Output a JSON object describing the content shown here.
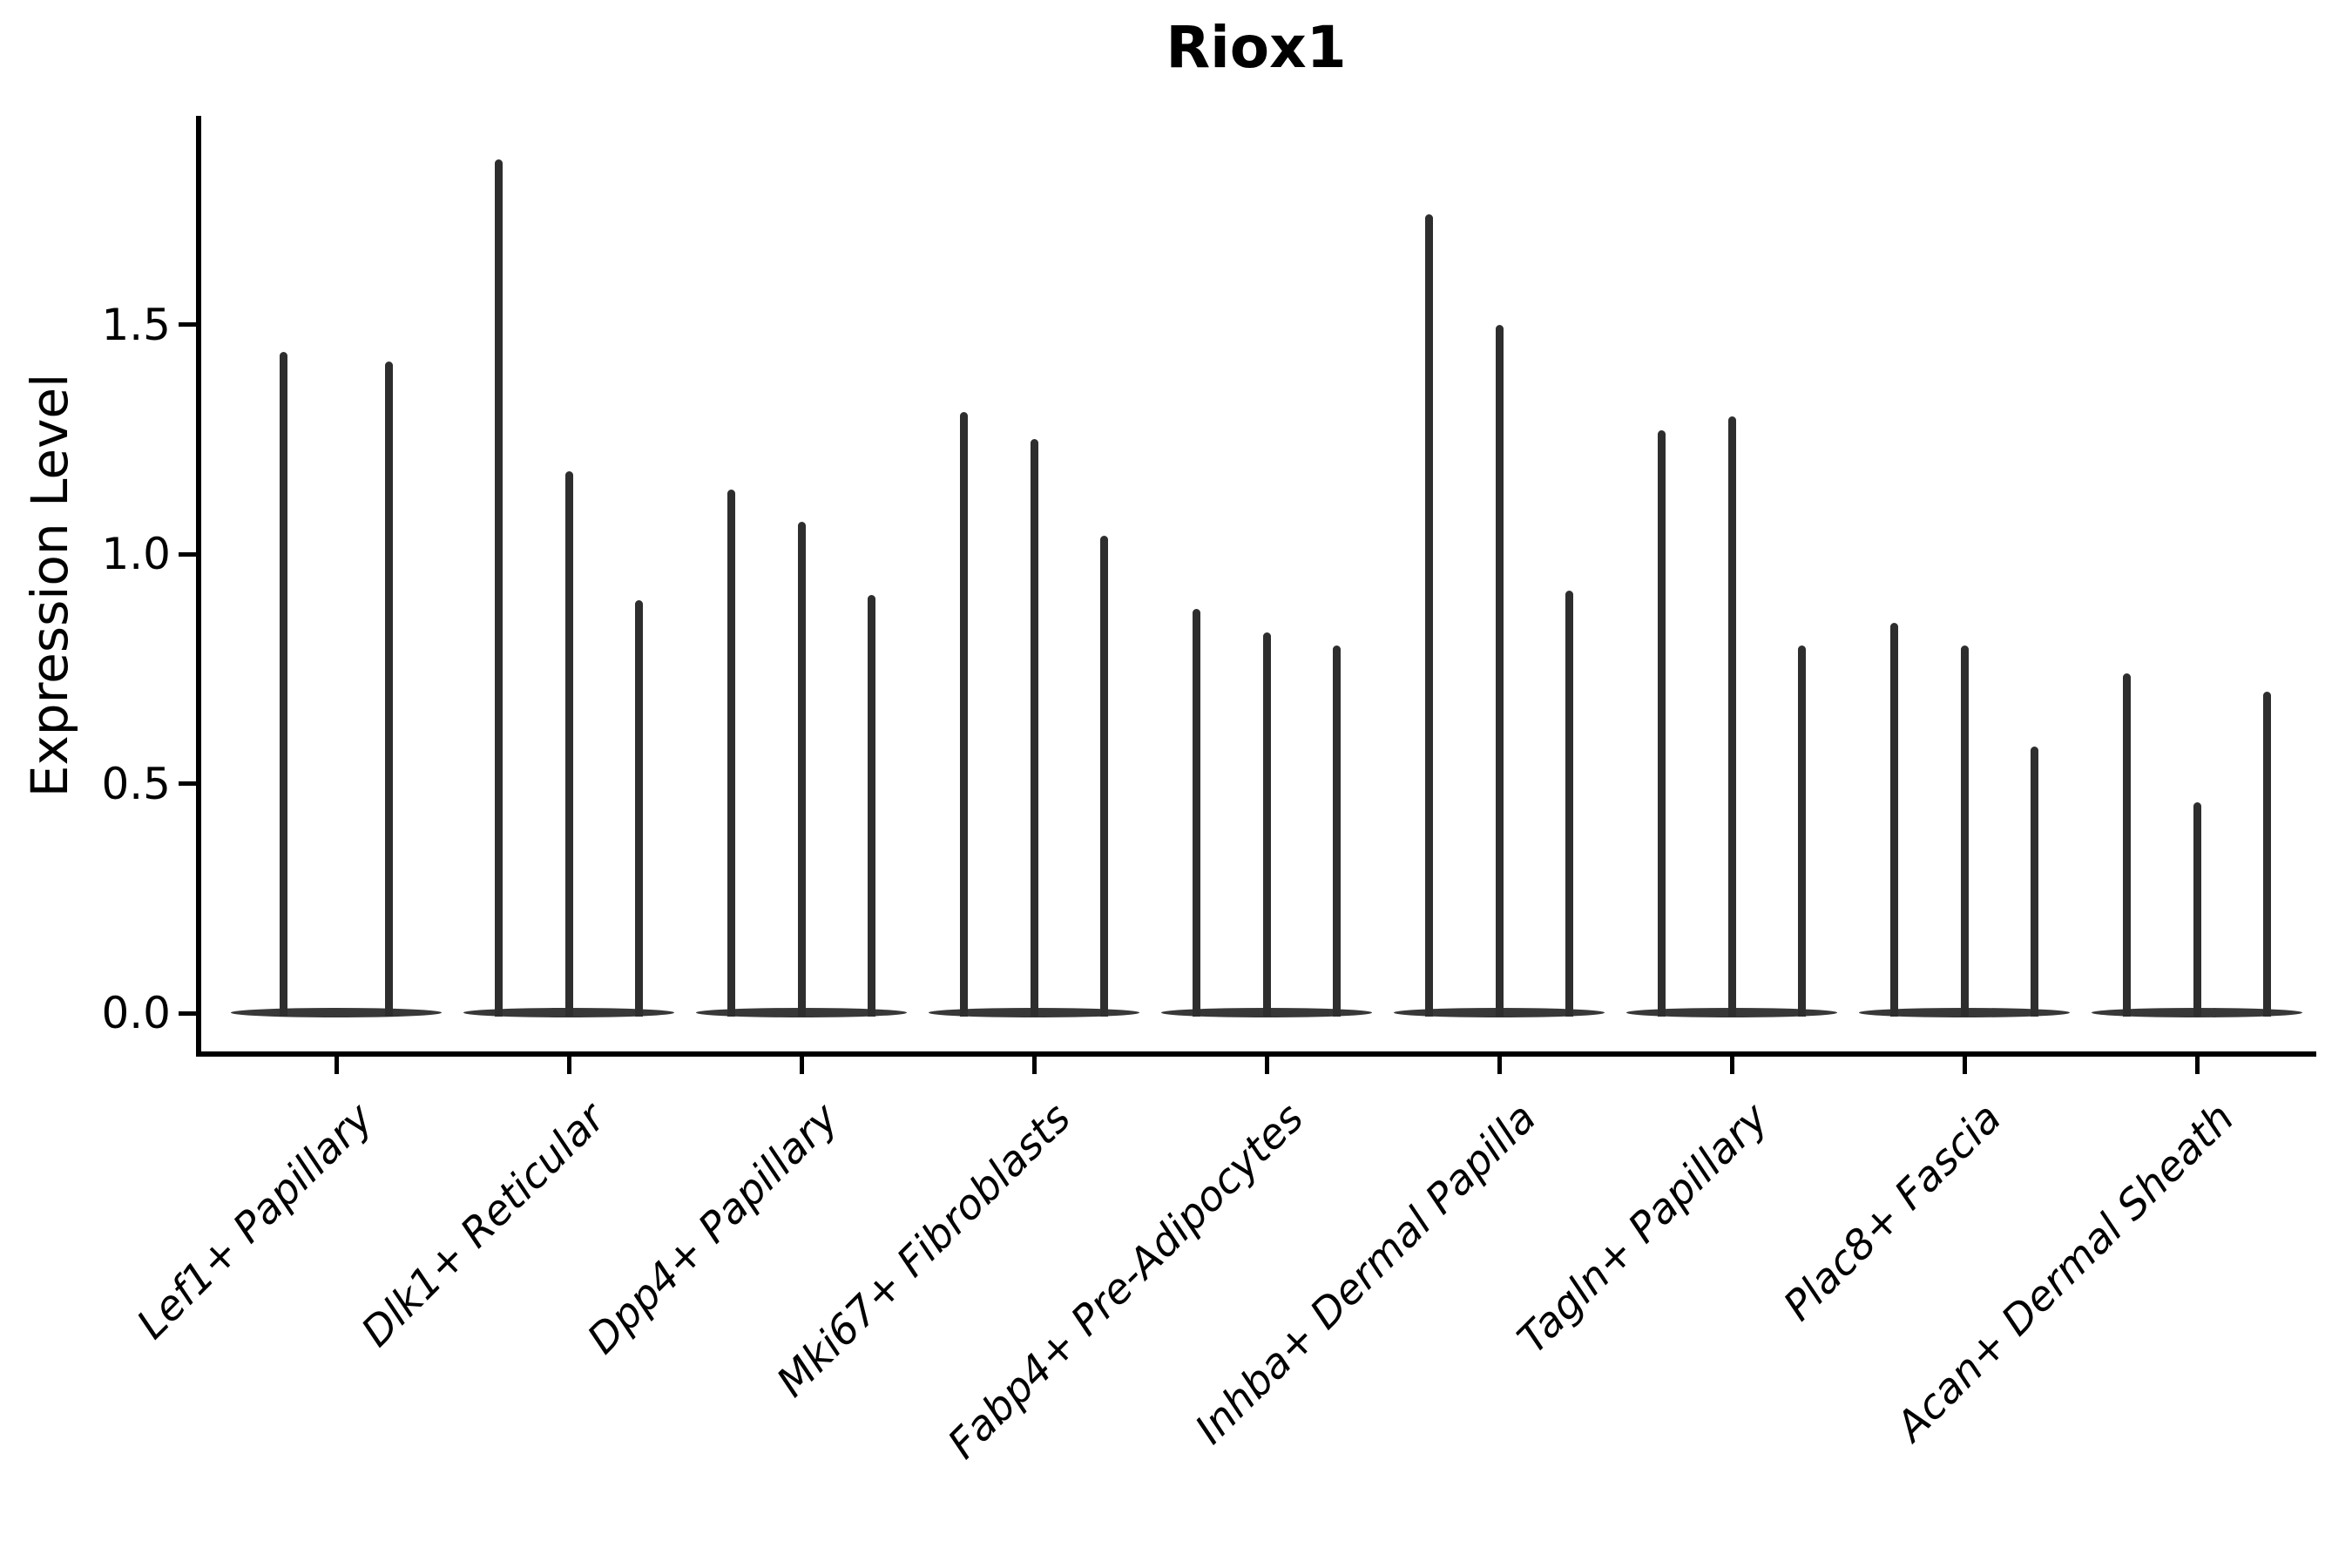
{
  "title": "Riox1",
  "y_axis": {
    "label": "Expression Level",
    "tick_labels": [
      "0.0",
      "0.5",
      "1.0",
      "1.5"
    ],
    "tick_values": [
      0.0,
      0.5,
      1.0,
      1.5
    ]
  },
  "chart_data": {
    "type": "violin",
    "title": "Riox1",
    "xlabel": "",
    "ylabel": "Expression Level",
    "ylim": [
      -0.09,
      1.96
    ],
    "grid": false,
    "legend": "none",
    "orientation": "vertical",
    "description": "Thin spike-shaped violins (dense mass at 0 with narrow tail up to max expression), grouped per cell type",
    "categories": [
      "Lef1+ Papillary",
      "Dlk1+ Reticular",
      "Dpp4+ Papillary",
      "Mki67+ Fibroblasts",
      "Fabp4+ Pre-Adipocytes",
      "Inhba+ Dermal Papilla",
      "Tagln+ Papillary",
      "Plac8+ Fascia",
      "Acan+ Dermal Sheath"
    ],
    "groups": [
      {
        "category": "Lef1+ Papillary",
        "violin_peak_values": [
          1.44,
          1.42
        ]
      },
      {
        "category": "Dlk1+ Reticular",
        "violin_peak_values": [
          1.86,
          1.18,
          0.9
        ]
      },
      {
        "category": "Dpp4+ Papillary",
        "violin_peak_values": [
          1.14,
          1.07,
          0.91
        ]
      },
      {
        "category": "Mki67+ Fibroblasts",
        "violin_peak_values": [
          1.31,
          1.25,
          1.04
        ]
      },
      {
        "category": "Fabp4+ Pre-Adipocytes",
        "violin_peak_values": [
          0.88,
          0.83,
          0.8
        ]
      },
      {
        "category": "Inhba+ Dermal Papilla",
        "violin_peak_values": [
          1.74,
          1.5,
          0.92
        ]
      },
      {
        "category": "Tagln+ Papillary",
        "violin_peak_values": [
          1.27,
          1.3,
          0.8
        ]
      },
      {
        "category": "Plac8+ Fascia",
        "violin_peak_values": [
          0.85,
          0.8,
          0.58
        ]
      },
      {
        "category": "Acan+ Dermal Sheath",
        "violin_peak_values": [
          0.74,
          0.46,
          0.7
        ]
      }
    ],
    "colors": {
      "violin": "#2e2e2e",
      "axis": "#000000",
      "background": "#ffffff"
    }
  }
}
